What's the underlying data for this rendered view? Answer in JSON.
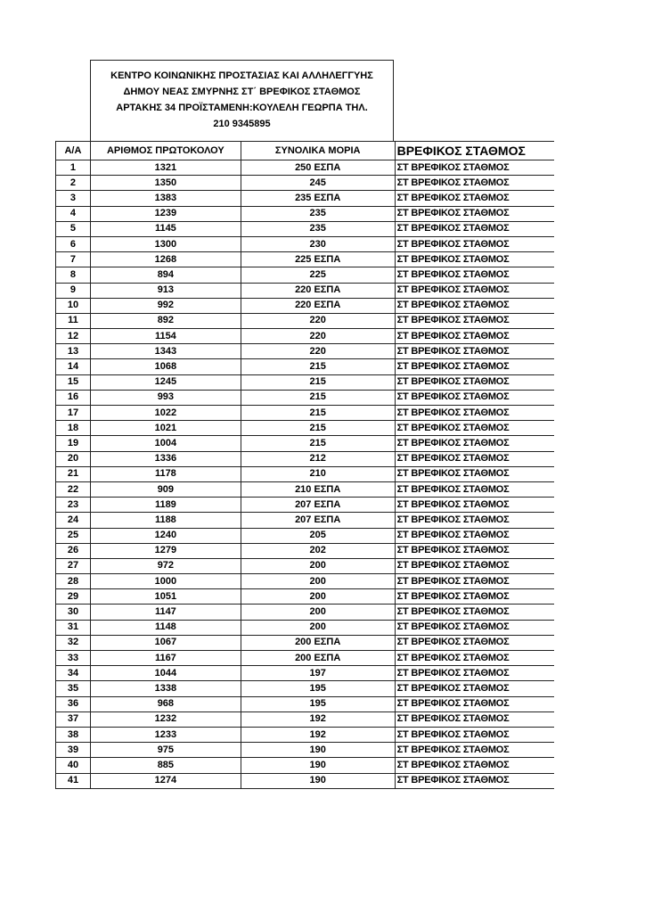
{
  "header": {
    "lines": [
      "ΚΕΝΤΡΟ ΚΟΙΝΩΝΙΚΗΣ ΠΡΟΣΤΑΣΙΑΣ ΚΑΙ ΑΛΛΗΛΕΓΓΥΗΣ",
      "ΔΗΜΟΥ ΝΕΑΣ ΣΜΥΡΝΗΣ ΣΤ΄ ΒΡΕΦΙΚΟΣ ΣΤΑΘΜΟΣ",
      "ΑΡΤΑΚΗΣ 34 ΠΡΟΪΣΤΑΜΕΝΗ:ΚΟΥΛΕΛΗ ΓΕΩΡΠΑ ΤΗΛ.",
      "210 9345895"
    ]
  },
  "table": {
    "columns": [
      "Α/Α",
      "ΑΡΙΘΜΟΣ ΠΡΩΤΟΚΟΛΟΥ",
      "ΣΥΝΟΛΙΚΑ ΜΟΡΙΑ",
      "ΒΡΕΦΙΚΟΣ ΣΤΑΘΜΟΣ"
    ],
    "rows": [
      [
        "1",
        "1321",
        "250 ΕΣΠΑ",
        "ΣΤ ΒΡΕΦΙΚΟΣ ΣΤΑΘΜΟΣ"
      ],
      [
        "2",
        "1350",
        "245",
        "ΣΤ ΒΡΕΦΙΚΟΣ ΣΤΑΘΜΟΣ"
      ],
      [
        "3",
        "1383",
        "235 ΕΣΠΑ",
        "ΣΤ ΒΡΕΦΙΚΟΣ ΣΤΑΘΜΟΣ"
      ],
      [
        "4",
        "1239",
        "235",
        "ΣΤ ΒΡΕΦΙΚΟΣ ΣΤΑΘΜΟΣ"
      ],
      [
        "5",
        "1145",
        "235",
        "ΣΤ ΒΡΕΦΙΚΟΣ ΣΤΑΘΜΟΣ"
      ],
      [
        "6",
        "1300",
        "230",
        "ΣΤ ΒΡΕΦΙΚΟΣ ΣΤΑΘΜΟΣ"
      ],
      [
        "7",
        "1268",
        "225 ΕΣΠΑ",
        "ΣΤ ΒΡΕΦΙΚΟΣ ΣΤΑΘΜΟΣ"
      ],
      [
        "8",
        "894",
        "225",
        "ΣΤ ΒΡΕΦΙΚΟΣ ΣΤΑΘΜΟΣ"
      ],
      [
        "9",
        "913",
        "220 ΕΣΠΑ",
        "ΣΤ ΒΡΕΦΙΚΟΣ ΣΤΑΘΜΟΣ"
      ],
      [
        "10",
        "992",
        "220 ΕΣΠΑ",
        "ΣΤ ΒΡΕΦΙΚΟΣ ΣΤΑΘΜΟΣ"
      ],
      [
        "11",
        "892",
        "220",
        "ΣΤ ΒΡΕΦΙΚΟΣ ΣΤΑΘΜΟΣ"
      ],
      [
        "12",
        "1154",
        "220",
        "ΣΤ ΒΡΕΦΙΚΟΣ ΣΤΑΘΜΟΣ"
      ],
      [
        "13",
        "1343",
        "220",
        "ΣΤ ΒΡΕΦΙΚΟΣ ΣΤΑΘΜΟΣ"
      ],
      [
        "14",
        "1068",
        "215",
        "ΣΤ ΒΡΕΦΙΚΟΣ ΣΤΑΘΜΟΣ"
      ],
      [
        "15",
        "1245",
        "215",
        "ΣΤ ΒΡΕΦΙΚΟΣ ΣΤΑΘΜΟΣ"
      ],
      [
        "16",
        "993",
        "215",
        "ΣΤ ΒΡΕΦΙΚΟΣ ΣΤΑΘΜΟΣ"
      ],
      [
        "17",
        "1022",
        "215",
        "ΣΤ ΒΡΕΦΙΚΟΣ ΣΤΑΘΜΟΣ"
      ],
      [
        "18",
        "1021",
        "215",
        "ΣΤ ΒΡΕΦΙΚΟΣ ΣΤΑΘΜΟΣ"
      ],
      [
        "19",
        "1004",
        "215",
        "ΣΤ ΒΡΕΦΙΚΟΣ ΣΤΑΘΜΟΣ"
      ],
      [
        "20",
        "1336",
        "212",
        "ΣΤ ΒΡΕΦΙΚΟΣ ΣΤΑΘΜΟΣ"
      ],
      [
        "21",
        "1178",
        "210",
        "ΣΤ ΒΡΕΦΙΚΟΣ ΣΤΑΘΜΟΣ"
      ],
      [
        "22",
        "909",
        "210 ΕΣΠΑ",
        "ΣΤ ΒΡΕΦΙΚΟΣ ΣΤΑΘΜΟΣ"
      ],
      [
        "23",
        "1189",
        "207 ΕΣΠΑ",
        "ΣΤ ΒΡΕΦΙΚΟΣ ΣΤΑΘΜΟΣ"
      ],
      [
        "24",
        "1188",
        "207 ΕΣΠΑ",
        "ΣΤ ΒΡΕΦΙΚΟΣ ΣΤΑΘΜΟΣ"
      ],
      [
        "25",
        "1240",
        "205",
        "ΣΤ ΒΡΕΦΙΚΟΣ ΣΤΑΘΜΟΣ"
      ],
      [
        "26",
        "1279",
        "202",
        "ΣΤ ΒΡΕΦΙΚΟΣ ΣΤΑΘΜΟΣ"
      ],
      [
        "27",
        "972",
        "200",
        "ΣΤ ΒΡΕΦΙΚΟΣ ΣΤΑΘΜΟΣ"
      ],
      [
        "28",
        "1000",
        "200",
        "ΣΤ ΒΡΕΦΙΚΟΣ ΣΤΑΘΜΟΣ"
      ],
      [
        "29",
        "1051",
        "200",
        "ΣΤ ΒΡΕΦΙΚΟΣ ΣΤΑΘΜΟΣ"
      ],
      [
        "30",
        "1147",
        "200",
        "ΣΤ ΒΡΕΦΙΚΟΣ ΣΤΑΘΜΟΣ"
      ],
      [
        "31",
        "1148",
        "200",
        "ΣΤ ΒΡΕΦΙΚΟΣ ΣΤΑΘΜΟΣ"
      ],
      [
        "32",
        "1067",
        "200 ΕΣΠΑ",
        "ΣΤ ΒΡΕΦΙΚΟΣ ΣΤΑΘΜΟΣ"
      ],
      [
        "33",
        "1167",
        "200 ΕΣΠΑ",
        "ΣΤ ΒΡΕΦΙΚΟΣ ΣΤΑΘΜΟΣ"
      ],
      [
        "34",
        "1044",
        "197",
        "ΣΤ ΒΡΕΦΙΚΟΣ ΣΤΑΘΜΟΣ"
      ],
      [
        "35",
        "1338",
        "195",
        "ΣΤ ΒΡΕΦΙΚΟΣ ΣΤΑΘΜΟΣ"
      ],
      [
        "36",
        "968",
        "195",
        "ΣΤ ΒΡΕΦΙΚΟΣ ΣΤΑΘΜΟΣ"
      ],
      [
        "37",
        "1232",
        "192",
        "ΣΤ ΒΡΕΦΙΚΟΣ ΣΤΑΘΜΟΣ"
      ],
      [
        "38",
        "1233",
        "192",
        "ΣΤ ΒΡΕΦΙΚΟΣ ΣΤΑΘΜΟΣ"
      ],
      [
        "39",
        "975",
        "190",
        "ΣΤ ΒΡΕΦΙΚΟΣ ΣΤΑΘΜΟΣ"
      ],
      [
        "40",
        "885",
        "190",
        "ΣΤ ΒΡΕΦΙΚΟΣ ΣΤΑΘΜΟΣ"
      ],
      [
        "41",
        "1274",
        "190",
        "ΣΤ ΒΡΕΦΙΚΟΣ ΣΤΑΘΜΟΣ"
      ]
    ]
  }
}
